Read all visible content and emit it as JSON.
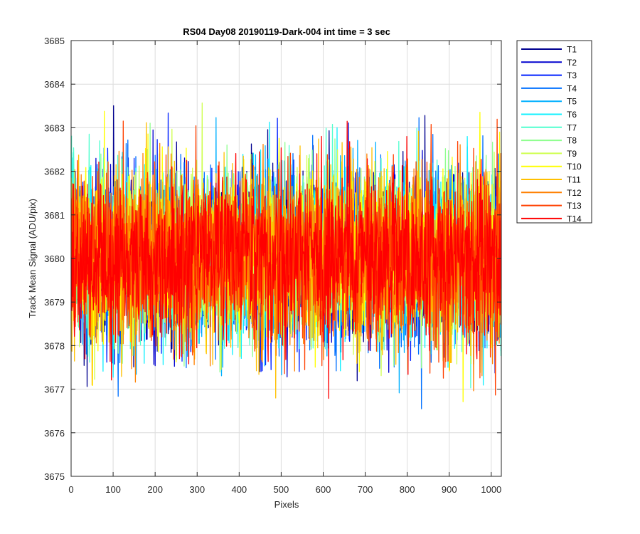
{
  "chart_data": {
    "type": "line",
    "title": "RS04 Day08 20190119-Dark-004 int time = 3 sec",
    "xlabel": "Pixels",
    "ylabel": "Track Mean Signal (ADU/pix)",
    "xlim": [
      0,
      1024
    ],
    "ylim": [
      3675,
      3685
    ],
    "xticks": [
      0,
      100,
      200,
      300,
      400,
      500,
      600,
      700,
      800,
      900,
      1000
    ],
    "yticks": [
      3675,
      3676,
      3677,
      3678,
      3679,
      3680,
      3681,
      3682,
      3683,
      3684,
      3685
    ],
    "grid": true,
    "legend_position": "outside-top-right",
    "sampling": {
      "n": 1024,
      "mean": 3680.0,
      "spread": 1.0,
      "min_observed": 3675.8,
      "max_observed": 3684.0
    },
    "series": [
      {
        "name": "T1",
        "color": "#00008f"
      },
      {
        "name": "T2",
        "color": "#0000cf"
      },
      {
        "name": "T3",
        "color": "#0020ff"
      },
      {
        "name": "T4",
        "color": "#0070ff"
      },
      {
        "name": "T5",
        "color": "#00b0ff"
      },
      {
        "name": "T6",
        "color": "#10f0ff"
      },
      {
        "name": "T7",
        "color": "#50ffcf"
      },
      {
        "name": "T8",
        "color": "#8fff8f"
      },
      {
        "name": "T9",
        "color": "#cfff50"
      },
      {
        "name": "T10",
        "color": "#ffff00"
      },
      {
        "name": "T11",
        "color": "#ffc000"
      },
      {
        "name": "T12",
        "color": "#ff8000"
      },
      {
        "name": "T13",
        "color": "#ff4000"
      },
      {
        "name": "T14",
        "color": "#ff0000"
      }
    ]
  }
}
